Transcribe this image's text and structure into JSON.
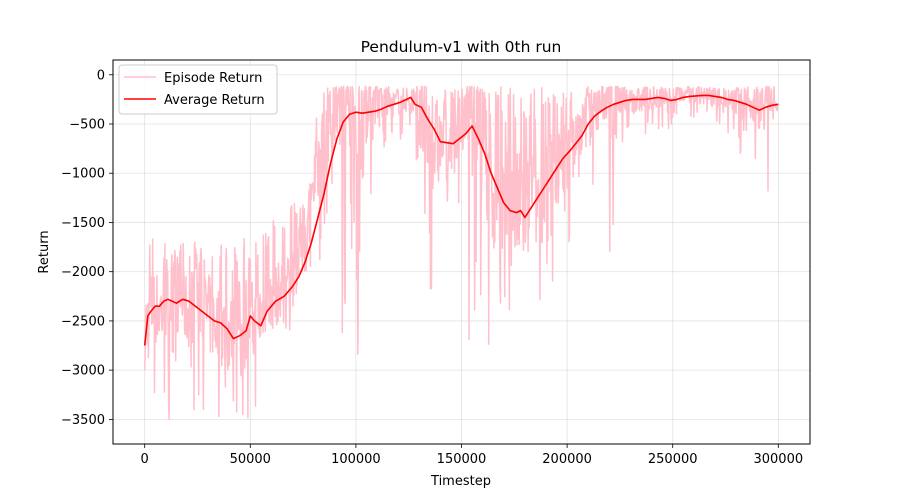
{
  "chart_data": {
    "type": "line",
    "title": "Pendulum-v1 with 0th run",
    "xlabel": "Timestep",
    "ylabel": "Return",
    "xlim": [
      -15000,
      315000
    ],
    "ylim": [
      -3750,
      150
    ],
    "xticks": [
      0,
      50000,
      100000,
      150000,
      200000,
      250000,
      300000
    ],
    "xtick_labels": [
      "0",
      "50000",
      "100000",
      "150000",
      "200000",
      "250000",
      "300000"
    ],
    "yticks": [
      0,
      -500,
      -1000,
      -1500,
      -2000,
      -2500,
      -3000,
      -3500
    ],
    "ytick_labels": [
      "0",
      "−500",
      "−1000",
      "−1500",
      "−2000",
      "−2500",
      "−3000",
      "−3500"
    ],
    "grid": true,
    "legend": "top-left",
    "colors": {
      "episode": "#ffc0cb",
      "average": "#ff0000"
    },
    "series": [
      {
        "name": "Episode Return",
        "style": "noisy",
        "x": [
          0,
          4000,
          8000,
          12000,
          16000,
          20000,
          24000,
          28000,
          32000,
          36000,
          40000,
          44000,
          48000,
          52000,
          56000,
          60000,
          64000,
          68000,
          72000,
          76000,
          80000,
          84000,
          88000,
          92000,
          96000,
          100000,
          104000,
          108000,
          112000,
          116000,
          120000,
          124000,
          128000,
          132000,
          136000,
          140000,
          144000,
          148000,
          152000,
          156000,
          160000,
          164000,
          168000,
          172000,
          176000,
          180000,
          184000,
          188000,
          192000,
          196000,
          200000,
          204000,
          208000,
          212000,
          216000,
          220000,
          224000,
          228000,
          232000,
          236000,
          240000,
          244000,
          248000,
          252000,
          256000,
          260000,
          264000,
          268000,
          272000,
          276000,
          280000,
          284000,
          288000,
          292000,
          296000,
          300000
        ],
        "center": [
          -2600,
          -2350,
          -2400,
          -2300,
          -2250,
          -2400,
          -2300,
          -2350,
          -2500,
          -2550,
          -2650,
          -2500,
          -2450,
          -2550,
          -2400,
          -2300,
          -2200,
          -2100,
          -1900,
          -1700,
          -1200,
          -700,
          -500,
          -400,
          -350,
          -400,
          -380,
          -350,
          -300,
          -300,
          -280,
          -250,
          -350,
          -500,
          -700,
          -700,
          -650,
          -600,
          -500,
          -700,
          -1000,
          -1200,
          -1300,
          -1400,
          -1350,
          -1400,
          -1300,
          -1200,
          -1000,
          -900,
          -800,
          -650,
          -500,
          -400,
          -300,
          -250,
          -250,
          -280,
          -300,
          -300,
          -250,
          -250,
          -230,
          -220,
          -200,
          -210,
          -220,
          -220,
          -230,
          -250,
          -280,
          -300,
          -330,
          -320,
          -300,
          -300
        ],
        "low": [
          -3500,
          -3400,
          -3500,
          -3450,
          -3300,
          -3500,
          -3400,
          -3550,
          -3550,
          -3500,
          -3450,
          -3500,
          -3600,
          -3500,
          -3000,
          -2800,
          -2700,
          -2700,
          -2600,
          -2200,
          -2100,
          -1700,
          -1200,
          -3200,
          -1800,
          -3200,
          -1700,
          -1600,
          -800,
          -700,
          -700,
          -600,
          -2300,
          -2300,
          -2200,
          -1500,
          -1200,
          -1400,
          -2700,
          -2900,
          -2850,
          -2900,
          -2900,
          -2800,
          -2750,
          -2600,
          -2700,
          -2400,
          -2200,
          -1700,
          -1800,
          -1300,
          -1450,
          -1200,
          -1000,
          -2200,
          -700,
          -600,
          -550,
          -650,
          -700,
          -600,
          -550,
          -500,
          -500,
          -550,
          -550,
          -600,
          -550,
          -600,
          -900,
          -700,
          -1100,
          -1200,
          -450,
          -400
        ],
        "high": [
          -1600,
          -1650,
          -1700,
          -1750,
          -1650,
          -1700,
          -1750,
          -1700,
          -1800,
          -1700,
          -1750,
          -1650,
          -1650,
          -1700,
          -1600,
          -1400,
          -1500,
          -1300,
          -1300,
          -1100,
          -200,
          -120,
          -120,
          -120,
          -120,
          -120,
          -120,
          -120,
          -120,
          -120,
          -120,
          -120,
          -120,
          -120,
          -120,
          -120,
          -120,
          -120,
          -120,
          -120,
          -120,
          -120,
          -120,
          -120,
          -120,
          -120,
          -120,
          -120,
          -120,
          -120,
          -120,
          -120,
          -120,
          -120,
          -120,
          -120,
          -120,
          -120,
          -120,
          -120,
          -120,
          -120,
          -120,
          -120,
          -120,
          -120,
          -120,
          -120,
          -120,
          -120,
          -120,
          -120,
          -120,
          -120,
          -120,
          -120
        ]
      },
      {
        "name": "Average Return",
        "x": [
          0,
          1500,
          3000,
          5000,
          7000,
          9000,
          11000,
          13000,
          15000,
          18000,
          21000,
          24000,
          27000,
          30000,
          33000,
          36000,
          39000,
          42000,
          45000,
          48000,
          50000,
          52000,
          55000,
          58000,
          62000,
          66000,
          70000,
          73000,
          76000,
          79000,
          82000,
          85000,
          88000,
          91000,
          94000,
          97000,
          100000,
          103000,
          106000,
          109000,
          112000,
          115000,
          118000,
          121000,
          124000,
          126000,
          128000,
          131000,
          134000,
          137000,
          140000,
          143000,
          146000,
          149000,
          152000,
          155000,
          158000,
          161000,
          164000,
          167000,
          170000,
          173000,
          176000,
          178000,
          180000,
          183000,
          186000,
          189000,
          192000,
          195000,
          198000,
          201000,
          204000,
          207000,
          210000,
          213000,
          216000,
          219000,
          222000,
          225000,
          228000,
          231000,
          234000,
          237000,
          240000,
          243000,
          246000,
          249000,
          252000,
          255000,
          258000,
          261000,
          264000,
          267000,
          270000,
          273000,
          276000,
          279000,
          282000,
          285000,
          288000,
          291000,
          294000,
          297000,
          300000
        ],
        "y": [
          -2750,
          -2450,
          -2400,
          -2350,
          -2350,
          -2300,
          -2280,
          -2300,
          -2320,
          -2280,
          -2300,
          -2350,
          -2400,
          -2450,
          -2500,
          -2520,
          -2580,
          -2680,
          -2650,
          -2600,
          -2450,
          -2500,
          -2550,
          -2400,
          -2300,
          -2250,
          -2150,
          -2050,
          -1900,
          -1700,
          -1450,
          -1200,
          -900,
          -650,
          -480,
          -400,
          -380,
          -390,
          -380,
          -370,
          -350,
          -320,
          -300,
          -280,
          -250,
          -230,
          -300,
          -330,
          -450,
          -550,
          -680,
          -690,
          -700,
          -650,
          -600,
          -520,
          -650,
          -800,
          -1000,
          -1150,
          -1300,
          -1380,
          -1400,
          -1380,
          -1450,
          -1350,
          -1250,
          -1150,
          -1050,
          -950,
          -850,
          -780,
          -700,
          -620,
          -500,
          -420,
          -370,
          -330,
          -300,
          -280,
          -260,
          -250,
          -250,
          -250,
          -240,
          -230,
          -240,
          -260,
          -250,
          -230,
          -220,
          -215,
          -210,
          -210,
          -220,
          -230,
          -250,
          -260,
          -280,
          -300,
          -330,
          -360,
          -330,
          -310,
          -300
        ]
      }
    ]
  }
}
